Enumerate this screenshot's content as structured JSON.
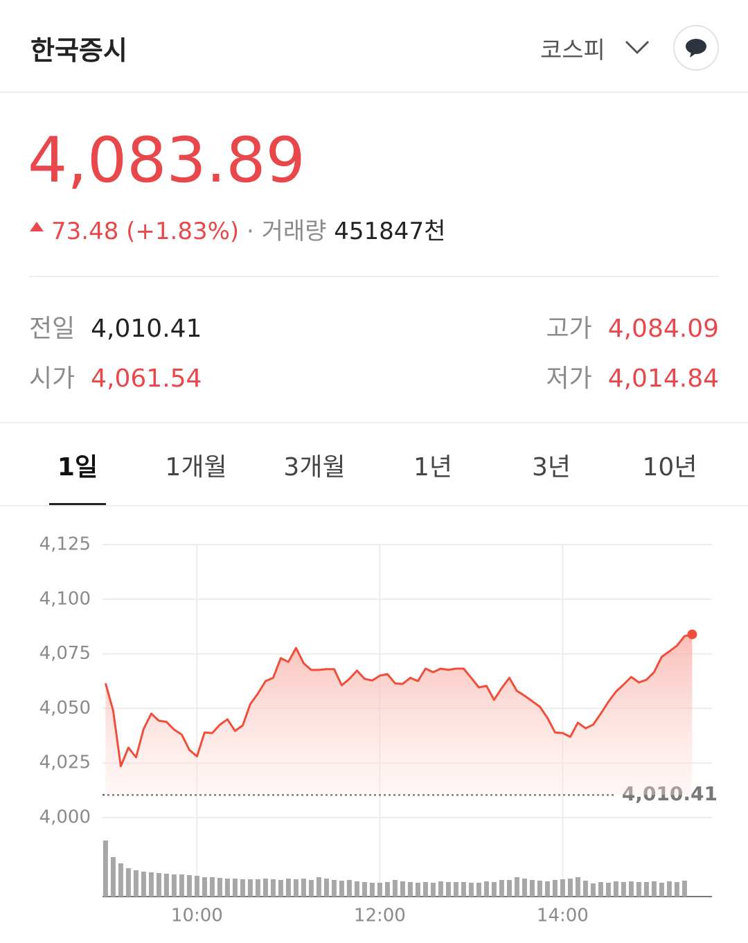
{
  "header": {
    "title": "한국증시",
    "market": "코스피"
  },
  "quote": {
    "price": "4,083.89",
    "change": "73.48",
    "change_pct": "(+1.83%)",
    "volume_label": "거래량",
    "volume": "451847천"
  },
  "stats": [
    {
      "label": "전일",
      "value": "4,010.41"
    },
    {
      "label": "고가",
      "value": "4,084.09"
    },
    {
      "label": "시가",
      "value": "4,061.54"
    },
    {
      "label": "저가",
      "value": "4,014.84"
    }
  ],
  "tabs": [
    "1일",
    "1개월",
    "3개월",
    "1년",
    "3년",
    "10년"
  ],
  "chart_data": {
    "type": "line",
    "x": [
      "09:00",
      "09:05",
      "09:10",
      "09:15",
      "09:20",
      "09:25",
      "09:30",
      "09:35",
      "09:40",
      "09:45",
      "09:50",
      "09:55",
      "10:00",
      "10:05",
      "10:10",
      "10:15",
      "10:20",
      "10:25",
      "10:30",
      "10:35",
      "10:40",
      "10:45",
      "10:50",
      "10:55",
      "11:00",
      "11:05",
      "11:10",
      "11:15",
      "11:20",
      "11:25",
      "11:30",
      "11:35",
      "11:40",
      "11:45",
      "11:50",
      "11:55",
      "12:00",
      "12:05",
      "12:10",
      "12:15",
      "12:20",
      "12:25",
      "12:30",
      "12:35",
      "12:40",
      "12:45",
      "12:50",
      "12:55",
      "13:00",
      "13:05",
      "13:10",
      "13:15",
      "13:20",
      "13:25",
      "13:30",
      "13:35",
      "13:40",
      "13:45",
      "13:50",
      "13:55",
      "14:00",
      "14:05",
      "14:10",
      "14:15",
      "14:20",
      "14:25",
      "14:30",
      "14:35",
      "14:40",
      "14:45",
      "14:50",
      "14:55",
      "15:00",
      "15:05",
      "15:10",
      "15:15",
      "15:20",
      "15:25"
    ],
    "series": [
      {
        "name": "코스피",
        "color": "#f04e3a",
        "values": [
          4061.5,
          4049,
          4023.5,
          4032,
          4027.6,
          4040.6,
          4047.6,
          4044.4,
          4043.8,
          4040.3,
          4038,
          4031,
          4028,
          4039,
          4038.7,
          4042.5,
          4045,
          4039.7,
          4042.2,
          4052,
          4056.8,
          4062.5,
          4064,
          4073,
          4071.3,
          4077.7,
          4070.7,
          4067.6,
          4067.6,
          4068,
          4068,
          4060.6,
          4063.5,
          4067.3,
          4063.5,
          4062.8,
          4065,
          4065.7,
          4061.5,
          4061.2,
          4064,
          4062.5,
          4068.2,
          4066.6,
          4068.2,
          4067.6,
          4068.2,
          4068.2,
          4064,
          4059.6,
          4060.3,
          4053.9,
          4059.3,
          4064,
          4058,
          4055.8,
          4053.3,
          4050.8,
          4045.7,
          4039,
          4038.7,
          4037,
          4043.5,
          4040.9,
          4042.5,
          4047.6,
          4053,
          4057.7,
          4060.9,
          4064.4,
          4061.9,
          4063.1,
          4066.6,
          4073.6,
          4076.1,
          4078.7,
          4083.1,
          4083.89
        ]
      },
      {
        "name": "거래량",
        "color": "#a7a7a7",
        "axis": "y2",
        "values": [
          81,
          57,
          48,
          41,
          38,
          36,
          35,
          34,
          33,
          32,
          32,
          31,
          30,
          28,
          28,
          27,
          26,
          26,
          25,
          25,
          25,
          26,
          25,
          24,
          26,
          25,
          26,
          24,
          28,
          26,
          24,
          23,
          24,
          22,
          21,
          20,
          20,
          21,
          24,
          22,
          21,
          20,
          21,
          20,
          22,
          21,
          21,
          21,
          20,
          20,
          22,
          21,
          24,
          24,
          28,
          26,
          24,
          23,
          22,
          24,
          25,
          26,
          28,
          23,
          19,
          21,
          20,
          22,
          21,
          22,
          21,
          21,
          22,
          20,
          22,
          21,
          23,
          null
        ]
      }
    ],
    "baseline": {
      "value": 4010.41,
      "label": "4,010.41"
    },
    "xlim": [
      "08:58",
      "15:38"
    ],
    "xticks": [
      "10:00",
      "12:00",
      "14:00"
    ],
    "ylim": [
      4000,
      4125
    ],
    "yticks": [
      {
        "value": 4000,
        "label": "4,000"
      },
      {
        "value": 4025,
        "label": "4,025"
      },
      {
        "value": 4050,
        "label": "4,050"
      },
      {
        "value": 4075,
        "label": "4,075"
      },
      {
        "value": 4100,
        "label": "4,100"
      },
      {
        "value": 4125,
        "label": "4,125"
      }
    ],
    "y2lim": [
      0,
      81
    ],
    "grid": true
  }
}
